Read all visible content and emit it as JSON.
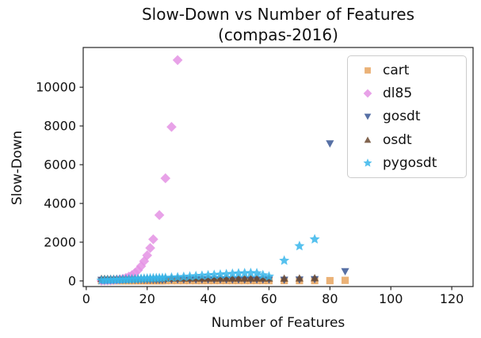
{
  "title": {
    "line1": "Slow-Down vs Number of Features",
    "line2": "(compas-2016)"
  },
  "chart_data": {
    "type": "scatter",
    "title": "Slow-Down vs Number of Features (compas-2016)",
    "xlabel": "Number of Features",
    "ylabel": "Slow-Down",
    "x_ticks": [
      0,
      20,
      40,
      60,
      80,
      100,
      120
    ],
    "y_ticks": [
      0,
      2000,
      4000,
      6000,
      8000,
      10000
    ],
    "xlim": [
      -1,
      127
    ],
    "ylim": [
      -290,
      12050
    ],
    "grid": false,
    "legend_position": "upper right",
    "series": [
      {
        "name": "cart",
        "marker": "square",
        "color": "#E8A45F",
        "points": [
          [
            5,
            8
          ],
          [
            6,
            8
          ],
          [
            7,
            8
          ],
          [
            8,
            8
          ],
          [
            9,
            8
          ],
          [
            10,
            8
          ],
          [
            11,
            8
          ],
          [
            12,
            8
          ],
          [
            13,
            8
          ],
          [
            14,
            8
          ],
          [
            15,
            8
          ],
          [
            16,
            8
          ],
          [
            17,
            8
          ],
          [
            18,
            8
          ],
          [
            19,
            8
          ],
          [
            20,
            8
          ],
          [
            21,
            8
          ],
          [
            22,
            8
          ],
          [
            23,
            8
          ],
          [
            24,
            8
          ],
          [
            25,
            8
          ],
          [
            26,
            10
          ],
          [
            28,
            10
          ],
          [
            30,
            10
          ],
          [
            32,
            10
          ],
          [
            34,
            10
          ],
          [
            36,
            10
          ],
          [
            38,
            10
          ],
          [
            40,
            12
          ],
          [
            42,
            12
          ],
          [
            44,
            12
          ],
          [
            46,
            12
          ],
          [
            48,
            12
          ],
          [
            50,
            12
          ],
          [
            52,
            12
          ],
          [
            54,
            12
          ],
          [
            56,
            12
          ],
          [
            58,
            12
          ],
          [
            60,
            12
          ],
          [
            65,
            15
          ],
          [
            70,
            15
          ],
          [
            75,
            15
          ],
          [
            80,
            15
          ],
          [
            85,
            30
          ]
        ]
      },
      {
        "name": "dl85",
        "marker": "diamond",
        "color": "#E492E4",
        "points": [
          [
            5,
            12
          ],
          [
            6,
            16
          ],
          [
            7,
            22
          ],
          [
            8,
            30
          ],
          [
            9,
            42
          ],
          [
            10,
            58
          ],
          [
            11,
            80
          ],
          [
            12,
            110
          ],
          [
            13,
            155
          ],
          [
            14,
            225
          ],
          [
            15,
            300
          ],
          [
            16,
            420
          ],
          [
            17,
            560
          ],
          [
            18,
            760
          ],
          [
            19,
            1020
          ],
          [
            20,
            1320
          ],
          [
            21,
            1700
          ],
          [
            22,
            2150
          ],
          [
            24,
            3400
          ],
          [
            26,
            5300
          ],
          [
            28,
            7950
          ],
          [
            30,
            11400
          ]
        ]
      },
      {
        "name": "gosdt",
        "marker": "triangle-down",
        "color": "#3A5795",
        "points": [
          [
            5,
            55
          ],
          [
            6,
            55
          ],
          [
            7,
            55
          ],
          [
            8,
            55
          ],
          [
            9,
            55
          ],
          [
            10,
            55
          ],
          [
            11,
            55
          ],
          [
            12,
            55
          ],
          [
            13,
            55
          ],
          [
            14,
            55
          ],
          [
            15,
            55
          ],
          [
            16,
            55
          ],
          [
            17,
            55
          ],
          [
            18,
            55
          ],
          [
            19,
            55
          ],
          [
            20,
            55
          ],
          [
            21,
            55
          ],
          [
            22,
            55
          ],
          [
            23,
            55
          ],
          [
            24,
            55
          ],
          [
            25,
            55
          ],
          [
            26,
            70
          ],
          [
            28,
            70
          ],
          [
            30,
            70
          ],
          [
            32,
            70
          ],
          [
            34,
            70
          ],
          [
            36,
            70
          ],
          [
            38,
            70
          ],
          [
            40,
            70
          ],
          [
            42,
            70
          ],
          [
            44,
            70
          ],
          [
            46,
            70
          ],
          [
            48,
            70
          ],
          [
            50,
            70
          ],
          [
            52,
            70
          ],
          [
            54,
            70
          ],
          [
            56,
            70
          ],
          [
            58,
            70
          ],
          [
            60,
            70
          ],
          [
            65,
            60
          ],
          [
            70,
            70
          ],
          [
            75,
            90
          ],
          [
            80,
            7100
          ],
          [
            85,
            500
          ]
        ]
      },
      {
        "name": "osdt",
        "marker": "triangle-up",
        "color": "#6B4930",
        "points": [
          [
            5,
            110
          ],
          [
            6,
            110
          ],
          [
            7,
            110
          ],
          [
            8,
            110
          ],
          [
            9,
            110
          ],
          [
            10,
            110
          ],
          [
            11,
            110
          ],
          [
            12,
            110
          ],
          [
            13,
            110
          ],
          [
            14,
            110
          ],
          [
            15,
            110
          ],
          [
            16,
            110
          ],
          [
            17,
            110
          ],
          [
            18,
            110
          ],
          [
            19,
            110
          ],
          [
            20,
            110
          ],
          [
            21,
            110
          ],
          [
            22,
            110
          ],
          [
            23,
            110
          ],
          [
            24,
            110
          ],
          [
            25,
            110
          ],
          [
            26,
            125
          ],
          [
            28,
            125
          ],
          [
            30,
            125
          ],
          [
            32,
            125
          ],
          [
            34,
            125
          ],
          [
            36,
            125
          ],
          [
            38,
            125
          ],
          [
            40,
            125
          ],
          [
            42,
            125
          ],
          [
            44,
            125
          ],
          [
            46,
            125
          ],
          [
            48,
            125
          ],
          [
            50,
            125
          ],
          [
            52,
            125
          ],
          [
            54,
            125
          ],
          [
            56,
            125
          ],
          [
            58,
            125
          ],
          [
            60,
            125
          ],
          [
            65,
            120
          ],
          [
            70,
            130
          ],
          [
            75,
            140
          ]
        ]
      },
      {
        "name": "pygosdt",
        "marker": "star",
        "color": "#38B6EB",
        "points": [
          [
            5,
            30
          ],
          [
            6,
            36
          ],
          [
            7,
            42
          ],
          [
            8,
            48
          ],
          [
            9,
            54
          ],
          [
            10,
            60
          ],
          [
            11,
            66
          ],
          [
            12,
            72
          ],
          [
            13,
            78
          ],
          [
            14,
            84
          ],
          [
            15,
            90
          ],
          [
            16,
            96
          ],
          [
            17,
            105
          ],
          [
            18,
            112
          ],
          [
            19,
            120
          ],
          [
            20,
            128
          ],
          [
            21,
            135
          ],
          [
            22,
            140
          ],
          [
            23,
            145
          ],
          [
            24,
            148
          ],
          [
            25,
            152
          ],
          [
            26,
            160
          ],
          [
            28,
            175
          ],
          [
            30,
            190
          ],
          [
            32,
            210
          ],
          [
            34,
            230
          ],
          [
            36,
            250
          ],
          [
            38,
            270
          ],
          [
            40,
            290
          ],
          [
            42,
            310
          ],
          [
            44,
            330
          ],
          [
            46,
            350
          ],
          [
            48,
            370
          ],
          [
            50,
            390
          ],
          [
            52,
            400
          ],
          [
            54,
            410
          ],
          [
            56,
            400
          ],
          [
            58,
            300
          ],
          [
            60,
            230
          ],
          [
            65,
            1050
          ],
          [
            70,
            1800
          ],
          [
            75,
            2150
          ]
        ]
      }
    ]
  },
  "plot": {
    "frame_color": "#262626",
    "background": "#ffffff"
  }
}
